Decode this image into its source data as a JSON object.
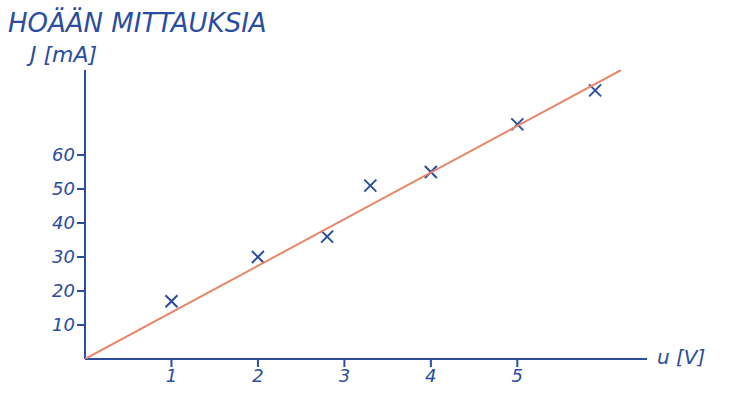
{
  "chart_data": {
    "type": "scatter",
    "title": "HOÄÄN MITTAUKSIA",
    "x_label": "u [V]",
    "y_label": "J [mA]",
    "xlim": [
      0,
      6.5
    ],
    "xticks": [
      1,
      2,
      3,
      4,
      5
    ],
    "ylim": [
      0,
      85
    ],
    "yticks": [
      10,
      20,
      30,
      40,
      50,
      60
    ],
    "grid": false,
    "series": [
      {
        "type": "scatter",
        "marker": "x",
        "color": "#2a4d9e",
        "x": [
          1.0,
          2.0,
          2.8,
          3.3,
          4.0,
          5.0,
          5.9
        ],
        "values": [
          17,
          30,
          36,
          51,
          55,
          69,
          79
        ]
      },
      {
        "type": "line",
        "line_style": "solid",
        "color": "#e8866a",
        "x": [
          0,
          6.2
        ],
        "values": [
          0,
          85
        ]
      }
    ]
  }
}
